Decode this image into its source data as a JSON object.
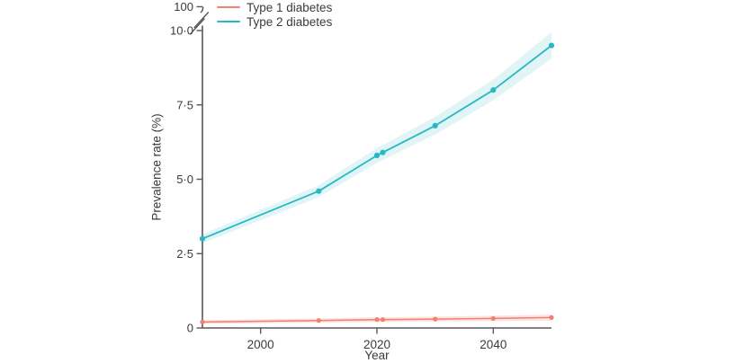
{
  "figure": {
    "background": "#ffffff"
  },
  "legend": {
    "entries": [
      {
        "label": "Type 1 diabetes",
        "color": "#f0806f"
      },
      {
        "label": "Type 2 diabetes",
        "color": "#2ab7c4"
      }
    ]
  },
  "chart_data": {
    "type": "line",
    "x": [
      1990,
      2010,
      2020,
      2021,
      2030,
      2040,
      2050
    ],
    "series": [
      {
        "name": "Type 1 diabetes",
        "color": "#f0806f",
        "band_color": "rgba(240,128,111,0.22)",
        "values": [
          0.2,
          0.25,
          0.28,
          0.28,
          0.3,
          0.32,
          0.35
        ],
        "ci_half": [
          0.06,
          0.07,
          0.08,
          0.08,
          0.08,
          0.09,
          0.1
        ]
      },
      {
        "name": "Type 2 diabetes",
        "color": "#2ab7c4",
        "band_color": "rgba(42,183,196,0.14)",
        "values": [
          3.0,
          4.6,
          5.8,
          5.9,
          6.8,
          8.0,
          9.5
        ],
        "ci_half": [
          0.15,
          0.2,
          0.25,
          0.25,
          0.3,
          0.35,
          0.45
        ]
      }
    ],
    "xlabel": "Year",
    "ylabel": "Prevalence rate (%)",
    "xlim": [
      1990,
      2050
    ],
    "ylim": [
      0,
      10
    ],
    "yticks": [
      {
        "v": 0,
        "label": "0"
      },
      {
        "v": 2.5,
        "label": "2·5"
      },
      {
        "v": 5,
        "label": "5·0"
      },
      {
        "v": 7.5,
        "label": "7·5"
      },
      {
        "v": 10,
        "label": "10·0"
      }
    ],
    "xticks": [
      {
        "v": 2000,
        "label": "2000"
      },
      {
        "v": 2020,
        "label": "2020"
      },
      {
        "v": 2040,
        "label": "2040"
      }
    ],
    "axis_break": {
      "top_label": "100"
    },
    "grid": false,
    "legend_position": "top-left"
  },
  "colors": {
    "axis": "#57585a",
    "text": "#3b3b3b"
  }
}
